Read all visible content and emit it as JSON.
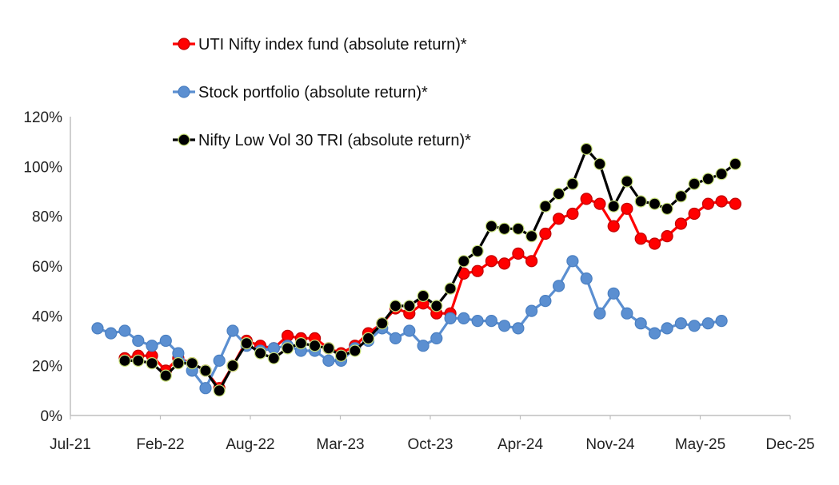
{
  "chart_data": {
    "type": "line",
    "title": "",
    "xlabel": "",
    "ylabel": "",
    "x_ticks": [
      "Jul-21",
      "Feb-22",
      "Aug-22",
      "Mar-23",
      "Oct-23",
      "Apr-24",
      "Nov-24",
      "May-25",
      "Dec-25"
    ],
    "y_ticks": [
      "0%",
      "20%",
      "40%",
      "60%",
      "80%",
      "100%",
      "120%"
    ],
    "ylim": [
      0,
      120
    ],
    "xlim": [
      "2021-07",
      "2025-12"
    ],
    "grid": false,
    "legend_position": "top-left inside plot",
    "series": [
      {
        "name": "UTI Nifty index fund (absolute return)*",
        "color": "#ff0000",
        "marker_fill": "#ff0000",
        "marker_stroke": "#c00000",
        "points": [
          [
            "2021-10-31",
            23
          ],
          [
            "2021-11-30",
            24
          ],
          [
            "2021-12-31",
            24
          ],
          [
            "2022-01-31",
            18
          ],
          [
            "2022-02-28",
            23
          ],
          [
            "2022-03-31",
            21
          ],
          [
            "2022-04-30",
            18
          ],
          [
            "2022-05-31",
            11
          ],
          [
            "2022-06-30",
            20
          ],
          [
            "2022-07-31",
            30
          ],
          [
            "2022-08-31",
            28
          ],
          [
            "2022-09-30",
            27
          ],
          [
            "2022-10-31",
            32
          ],
          [
            "2022-11-30",
            31
          ],
          [
            "2022-12-31",
            31
          ],
          [
            "2023-01-31",
            27
          ],
          [
            "2023-02-28",
            25
          ],
          [
            "2023-03-31",
            28
          ],
          [
            "2023-04-30",
            33
          ],
          [
            "2023-05-31",
            37
          ],
          [
            "2023-06-30",
            43
          ],
          [
            "2023-07-31",
            41
          ],
          [
            "2023-08-31",
            45
          ],
          [
            "2023-09-30",
            41
          ],
          [
            "2023-10-31",
            41
          ],
          [
            "2023-11-30",
            57
          ],
          [
            "2023-12-31",
            58
          ],
          [
            "2024-01-31",
            62
          ],
          [
            "2024-02-29",
            61
          ],
          [
            "2024-03-31",
            65
          ],
          [
            "2024-04-30",
            62
          ],
          [
            "2024-05-31",
            73
          ],
          [
            "2024-06-30",
            79
          ],
          [
            "2024-07-31",
            81
          ],
          [
            "2024-08-31",
            87
          ],
          [
            "2024-09-30",
            85
          ],
          [
            "2024-10-31",
            76
          ],
          [
            "2024-11-30",
            83
          ],
          [
            "2024-12-31",
            71
          ],
          [
            "2025-01-31",
            69
          ],
          [
            "2025-02-28",
            72
          ],
          [
            "2025-03-31",
            77
          ],
          [
            "2025-04-30",
            81
          ],
          [
            "2025-05-31",
            85
          ],
          [
            "2025-06-30",
            86
          ],
          [
            "2025-07-31",
            85
          ]
        ]
      },
      {
        "name": "Stock portfolio (absolute return)*",
        "color": "#5b8fd1",
        "marker_fill": "#5b8fd1",
        "marker_stroke": "#4a7fc1",
        "points": [
          [
            "2021-08-31",
            35
          ],
          [
            "2021-09-30",
            33
          ],
          [
            "2021-10-31",
            34
          ],
          [
            "2021-11-30",
            30
          ],
          [
            "2021-12-31",
            28
          ],
          [
            "2022-01-31",
            30
          ],
          [
            "2022-02-28",
            25
          ],
          [
            "2022-03-31",
            18
          ],
          [
            "2022-04-30",
            11
          ],
          [
            "2022-05-31",
            22
          ],
          [
            "2022-06-30",
            34
          ],
          [
            "2022-07-31",
            28
          ],
          [
            "2022-08-31",
            26
          ],
          [
            "2022-09-30",
            27
          ],
          [
            "2022-10-31",
            28
          ],
          [
            "2022-11-30",
            26
          ],
          [
            "2022-12-31",
            26
          ],
          [
            "2023-01-31",
            22
          ],
          [
            "2023-02-28",
            22
          ],
          [
            "2023-03-31",
            27
          ],
          [
            "2023-04-30",
            30
          ],
          [
            "2023-05-31",
            35
          ],
          [
            "2023-06-30",
            31
          ],
          [
            "2023-07-31",
            34
          ],
          [
            "2023-08-31",
            28
          ],
          [
            "2023-09-30",
            31
          ],
          [
            "2023-10-31",
            39
          ],
          [
            "2023-11-30",
            39
          ],
          [
            "2023-12-31",
            38
          ],
          [
            "2024-01-31",
            38
          ],
          [
            "2024-02-29",
            36
          ],
          [
            "2024-03-31",
            35
          ],
          [
            "2024-04-30",
            42
          ],
          [
            "2024-05-31",
            46
          ],
          [
            "2024-06-30",
            52
          ],
          [
            "2024-07-31",
            62
          ],
          [
            "2024-08-31",
            55
          ],
          [
            "2024-09-30",
            41
          ],
          [
            "2024-10-31",
            49
          ],
          [
            "2024-11-30",
            41
          ],
          [
            "2024-12-31",
            37
          ],
          [
            "2025-01-31",
            33
          ],
          [
            "2025-02-28",
            35
          ],
          [
            "2025-03-31",
            37
          ],
          [
            "2025-04-30",
            36
          ],
          [
            "2025-05-31",
            37
          ],
          [
            "2025-06-30",
            38
          ]
        ]
      },
      {
        "name": "Nifty Low Vol 30 TRI (absolute return)*",
        "color": "#000000",
        "marker_fill": "#000000",
        "marker_stroke": "#c8e07a",
        "points": [
          [
            "2021-10-31",
            22
          ],
          [
            "2021-11-30",
            22
          ],
          [
            "2021-12-31",
            21
          ],
          [
            "2022-01-31",
            16
          ],
          [
            "2022-02-28",
            21
          ],
          [
            "2022-03-31",
            21
          ],
          [
            "2022-04-30",
            18
          ],
          [
            "2022-05-31",
            10
          ],
          [
            "2022-06-30",
            20
          ],
          [
            "2022-07-31",
            29
          ],
          [
            "2022-08-31",
            25
          ],
          [
            "2022-09-30",
            23
          ],
          [
            "2022-10-31",
            27
          ],
          [
            "2022-11-30",
            29
          ],
          [
            "2022-12-31",
            28
          ],
          [
            "2023-01-31",
            27
          ],
          [
            "2023-02-28",
            24
          ],
          [
            "2023-03-31",
            26
          ],
          [
            "2023-04-30",
            31
          ],
          [
            "2023-05-31",
            37
          ],
          [
            "2023-06-30",
            44
          ],
          [
            "2023-07-31",
            44
          ],
          [
            "2023-08-31",
            48
          ],
          [
            "2023-09-30",
            44
          ],
          [
            "2023-10-31",
            51
          ],
          [
            "2023-11-30",
            62
          ],
          [
            "2023-12-31",
            66
          ],
          [
            "2024-01-31",
            76
          ],
          [
            "2024-02-29",
            75
          ],
          [
            "2024-03-31",
            75
          ],
          [
            "2024-04-30",
            72
          ],
          [
            "2024-05-31",
            84
          ],
          [
            "2024-06-30",
            89
          ],
          [
            "2024-07-31",
            93
          ],
          [
            "2024-08-31",
            107
          ],
          [
            "2024-09-30",
            101
          ],
          [
            "2024-10-31",
            84
          ],
          [
            "2024-11-30",
            94
          ],
          [
            "2024-12-31",
            86
          ],
          [
            "2025-01-31",
            85
          ],
          [
            "2025-02-28",
            83
          ],
          [
            "2025-03-31",
            88
          ],
          [
            "2025-04-30",
            93
          ],
          [
            "2025-05-31",
            95
          ],
          [
            "2025-06-30",
            97
          ],
          [
            "2025-07-31",
            101
          ]
        ]
      }
    ]
  }
}
